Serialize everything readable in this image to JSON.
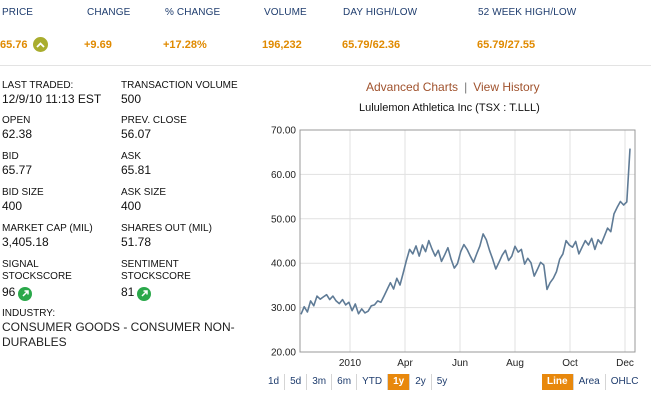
{
  "header": {
    "labels": {
      "price": "PRICE",
      "change": "CHANGE",
      "pct_change": "% CHANGE",
      "volume": "VOLUME",
      "day_high_low": "DAY HIGH/LOW",
      "week52_high_low": "52 WEEK HIGH/LOW"
    },
    "values": {
      "price": "65.76",
      "change": "+9.69",
      "pct_change": "+17.28%",
      "volume": "196,232",
      "day_high_low": "65.79/62.36",
      "week52_high_low": "65.79/27.55"
    }
  },
  "stats": {
    "last_traded": {
      "label": "LAST TRADED:",
      "value": "12/9/10 11:13 EST"
    },
    "transaction_volume": {
      "label": "TRANSACTION VOLUME",
      "value": "500"
    },
    "open": {
      "label": "OPEN",
      "value": "62.38"
    },
    "prev_close": {
      "label": "PREV. CLOSE",
      "value": "56.07"
    },
    "bid": {
      "label": "BID",
      "value": "65.77"
    },
    "ask": {
      "label": "ASK",
      "value": "65.81"
    },
    "bid_size": {
      "label": "BID SIZE",
      "value": "400"
    },
    "ask_size": {
      "label": "ASK SIZE",
      "value": "400"
    },
    "market_cap": {
      "label": "MARKET CAP (MIL)",
      "value": "3,405.18"
    },
    "shares_out": {
      "label": "SHARES OUT (MIL)",
      "value": "51.78"
    },
    "signal": {
      "label1": "SIGNAL",
      "label2": "STOCKSCORE",
      "value": "96"
    },
    "sentiment": {
      "label1": "SENTIMENT",
      "label2": "STOCKSCORE",
      "value": "81"
    },
    "industry": {
      "label": "INDUSTRY:",
      "value": "CONSUMER GOODS - CONSUMER NON-DURABLES"
    }
  },
  "chart_links": {
    "advanced": "Advanced Charts",
    "separator": "|",
    "history": "View History"
  },
  "colors": {
    "accent_orange": "#e08a00",
    "label_blue": "#1f3d6e",
    "link_brown": "#a0522d",
    "line": "#5f7b96",
    "score_green": "#2aa84a",
    "active_btn": "#e8880c"
  },
  "icons": {
    "price_up": "chevron-up-icon",
    "score": "arrow-up-right-icon"
  },
  "range_buttons": {
    "items": [
      "1d",
      "5d",
      "3m",
      "6m",
      "YTD",
      "1y",
      "2y",
      "5y"
    ],
    "active": "1y"
  },
  "type_buttons": {
    "items": [
      "Line",
      "Area",
      "OHLC"
    ],
    "active": "Line"
  },
  "chart_data": {
    "type": "line",
    "title": "Lululemon Athletica Inc (TSX : T.LLL)",
    "xlabel": "",
    "ylabel": "",
    "ylim": [
      20,
      70
    ],
    "y_ticks": [
      "20.00",
      "30.00",
      "40.00",
      "50.00",
      "60.00",
      "70.00"
    ],
    "x_ticks": [
      "2010",
      "Apr",
      "Jun",
      "Aug",
      "Oct",
      "Dec"
    ],
    "grid": true,
    "series": [
      {
        "values": [
          28.5,
          30.2,
          29.0,
          31.5,
          30.4,
          32.6,
          31.9,
          32.4,
          32.9,
          31.8,
          32.6,
          31.5,
          30.9,
          31.8,
          30.6,
          31.2,
          29.3,
          30.8,
          28.6,
          29.7,
          28.8,
          29.2,
          30.4,
          30.6,
          31.5,
          31.2,
          32.6,
          34.1,
          35.6,
          34.2,
          36.6,
          35.1,
          37.8,
          40.6,
          43.1,
          42.1,
          43.9,
          41.6,
          44.1,
          42.6,
          45.1,
          43.2,
          41.6,
          42.9,
          40.4,
          41.9,
          43.5,
          40.9,
          38.9,
          39.9,
          42.6,
          44.2,
          43.1,
          41.6,
          40.2,
          42.1,
          43.9,
          46.6,
          45.3,
          42.9,
          40.9,
          38.7,
          40.2,
          41.8,
          42.9,
          40.6,
          41.6,
          43.8,
          42.5,
          43.1,
          39.8,
          41.1,
          40.1,
          37.1,
          38.6,
          40.2,
          39.6,
          34.1,
          35.6,
          36.6,
          38.1,
          40.9,
          42.1,
          45.1,
          44.1,
          43.6,
          44.9,
          42.1,
          43.6,
          45.1,
          44.1,
          45.6,
          43.1,
          45.3,
          44.4,
          46.1,
          47.9,
          47.1,
          51.1,
          52.6,
          53.9,
          53.1,
          53.8,
          65.8
        ]
      }
    ]
  }
}
